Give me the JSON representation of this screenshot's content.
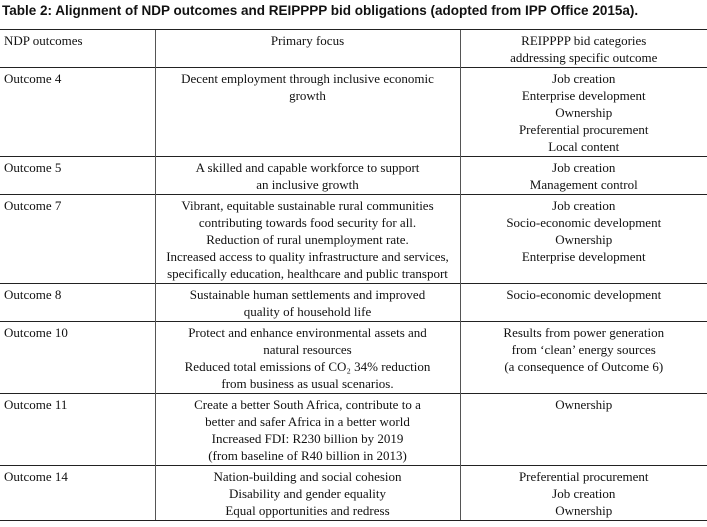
{
  "title": "Table 2: Alignment of NDP outcomes and REIPPPP bid obligations (adopted from IPP Office 2015a).",
  "table": {
    "header": [
      [
        "NDP outcomes"
      ],
      [
        "Primary focus"
      ],
      [
        "REIPPPP bid categories",
        "addressing specific outcome"
      ]
    ],
    "rows": [
      [
        [
          "Outcome 4"
        ],
        [
          "Decent employment through inclusive economic",
          "growth"
        ],
        [
          "Job creation",
          "Enterprise development",
          "Ownership",
          "Preferential procurement",
          "Local content"
        ]
      ],
      [
        [
          "Outcome 5"
        ],
        [
          "A skilled and capable workforce to support",
          "an inclusive growth"
        ],
        [
          "Job creation",
          "Management control"
        ]
      ],
      [
        [
          "Outcome 7"
        ],
        [
          "Vibrant, equitable sustainable rural communities",
          "contributing towards food security for all.",
          "Reduction of rural unemployment rate.",
          "Increased access to quality infrastructure and services,",
          "specifically education, healthcare and public transport"
        ],
        [
          "Job creation",
          "Socio-economic development",
          "Ownership",
          "Enterprise development"
        ]
      ],
      [
        [
          "Outcome 8"
        ],
        [
          "Sustainable human settlements and improved",
          "quality of household life"
        ],
        [
          "Socio-economic development"
        ]
      ],
      [
        [
          "Outcome 10"
        ],
        [
          "Protect and enhance environmental assets and",
          "natural resources",
          "Reduced total emissions of CO₂ 34% reduction",
          "from business as usual scenarios."
        ],
        [
          "Results from power generation",
          "from ‘clean’ energy sources",
          "(a consequence of Outcome 6)"
        ]
      ],
      [
        [
          "Outcome 11"
        ],
        [
          "Create a better South Africa, contribute to a",
          "better and safer Africa in a better world",
          "Increased FDI: R230 billion by 2019",
          "(from baseline of R40 billion in 2013)"
        ],
        [
          "Ownership"
        ]
      ],
      [
        [
          "Outcome 14"
        ],
        [
          "Nation-building and social cohesion",
          "Disability and gender equality",
          "Equal opportunities and redress"
        ],
        [
          "Preferential procurement",
          "Job creation",
          "Ownership"
        ]
      ]
    ]
  }
}
